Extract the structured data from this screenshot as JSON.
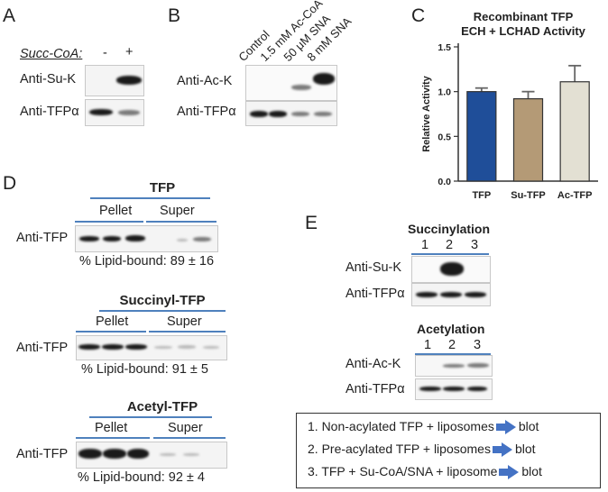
{
  "panelA": {
    "letter": "A",
    "succ_label": "Succ-CoA:",
    "minus": "-",
    "plus": "+",
    "row1": "Anti-Su-K",
    "row2": "Anti-TFPα"
  },
  "panelB": {
    "letter": "B",
    "lanes": [
      "Control",
      "1.5 mM Ac-CoA",
      "50 μM SNA",
      "8 mM SNA"
    ],
    "row1": "Anti-Ac-K",
    "row2": "Anti-TFPα"
  },
  "panelC": {
    "letter": "C",
    "title_line1": "Recombinant TFP",
    "title_line2": "ECH + LCHAD Activity",
    "ylabel": "Relative Activity",
    "yticks": [
      "0.0",
      "0.5",
      "1.0",
      "1.5"
    ],
    "colors": [
      "#1f4e99",
      "#b49a76",
      "#e3e0d3"
    ]
  },
  "chart_data": {
    "type": "bar",
    "categories": [
      "TFP",
      "Su-TFP",
      "Ac-TFP"
    ],
    "values": [
      1.0,
      0.92,
      1.11
    ],
    "errors": [
      0.04,
      0.08,
      0.18
    ],
    "title": "Recombinant TFP ECH + LCHAD Activity",
    "xlabel": "",
    "ylabel": "Relative Activity",
    "ylim": [
      0,
      1.5
    ]
  },
  "panelD": {
    "letter": "D",
    "blocks": [
      {
        "title": "TFP",
        "pellet": "Pellet",
        "super": "Super",
        "row": "Anti-TFP",
        "pct": "% Lipid-bound:  89 ± 16"
      },
      {
        "title": "Succinyl-TFP",
        "pellet": "Pellet",
        "super": "Super",
        "row": "Anti-TFP",
        "pct": "% Lipid-bound:  91 ± 5"
      },
      {
        "title": "Acetyl-TFP",
        "pellet": "Pellet",
        "super": "Super",
        "row": "Anti-TFP",
        "pct": "% Lipid-bound:  92 ± 4"
      }
    ]
  },
  "panelE": {
    "letter": "E",
    "succ_title": "Succinylation",
    "acet_title": "Acetylation",
    "lanes": [
      "1",
      "2",
      "3"
    ],
    "succ_row1": "Anti-Su-K",
    "succ_row2": "Anti-TFPα",
    "acet_row1": "Anti-Ac-K",
    "acet_row2": "Anti-TFPα"
  },
  "legend": {
    "line1a": "1. Non-acylated TFP + liposomes",
    "line1b": "blot",
    "line2a": "2. Pre-acylated TFP + liposomes",
    "line2b": "blot",
    "line3a": "3. TFP + Su-CoA/SNA + liposome",
    "line3b": "blot"
  }
}
